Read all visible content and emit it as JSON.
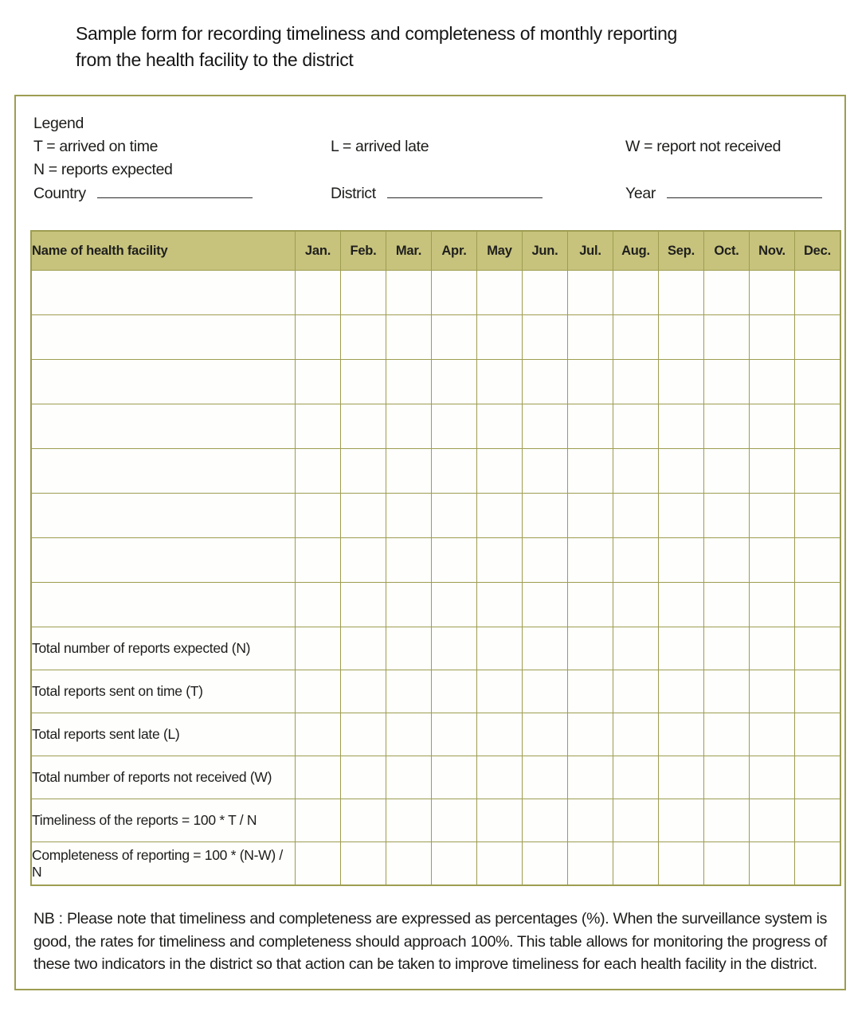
{
  "page": {
    "title_line1": "Sample form for recording timeliness and completeness of monthly reporting",
    "title_line2": "from the health facility to the district"
  },
  "legend": {
    "heading": "Legend",
    "item_t": "T = arrived on time",
    "item_l": "L = arrived late",
    "item_w": "W = report not received",
    "item_n": "N = reports expected",
    "country_label": "Country",
    "country_value": "",
    "district_label": "District",
    "district_value": "",
    "year_label": "Year",
    "year_value": ""
  },
  "table": {
    "facility_column_header": "Name of health facility",
    "month_headers": [
      "Jan.",
      "Feb.",
      "Mar.",
      "Apr.",
      "May",
      "Jun.",
      "Jul.",
      "Aug.",
      "Sep.",
      "Oct.",
      "Nov.",
      "Dec."
    ],
    "empty_facility_rows": 8,
    "empty_cell_value": "",
    "summary_row_labels": [
      "Total number of reports expected (N)",
      "Total reports sent on time (T)",
      "Total reports sent late (L)",
      "Total number of reports not received (W)",
      "Timeliness of the reports = 100 * T / N",
      "Completeness of reporting = 100 * (N-W) / N"
    ]
  },
  "note": "NB : Please note that timeliness and completeness are expressed as percentages (%). When the surveillance system is good, the rates for timeliness and completeness should approach 100%. This table allows for monitoring the progress of these two indicators in the district so that action can be taken to improve timeliness for each health facility in the district.",
  "colors": {
    "table_header_bg": "#c7c37d",
    "grid_border": "#9d9d51",
    "text": "#1d1d1b"
  }
}
